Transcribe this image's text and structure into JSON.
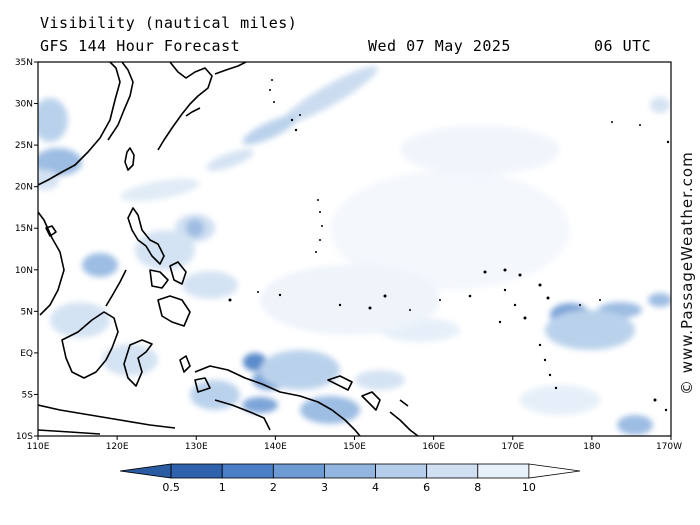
{
  "header": {
    "title": "Visibility (nautical miles)",
    "subtitle": "GFS 144 Hour Forecast",
    "date": "Wed 07 May 2025",
    "time": "06 UTC"
  },
  "credit": "© www.PassageWeather.com",
  "map": {
    "lon_range": [
      110,
      190
    ],
    "lat_range": [
      -10,
      35
    ],
    "lat_ticks": [
      "35N",
      "30N",
      "25N",
      "20N",
      "15N",
      "10N",
      "5N",
      "EQ",
      "5S",
      "10S"
    ],
    "lon_ticks": [
      "110E",
      "120E",
      "130E",
      "140E",
      "150E",
      "160E",
      "170E",
      "180",
      "170W"
    ]
  },
  "legend": {
    "labels": [
      "0.5",
      "1",
      "2",
      "3",
      "4",
      "6",
      "8",
      "10"
    ],
    "colors": [
      "#2f62ad",
      "#4a7fc6",
      "#6f9bd4",
      "#93b6e0",
      "#b3cdea",
      "#d0e0f2",
      "#e8f0fa",
      "#ffffff"
    ]
  },
  "colors": {
    "land_outline": "#000000",
    "low_vis": "#6f9bd4",
    "mid_vis": "#b3cdea",
    "high_vis": "#e4eef9"
  }
}
